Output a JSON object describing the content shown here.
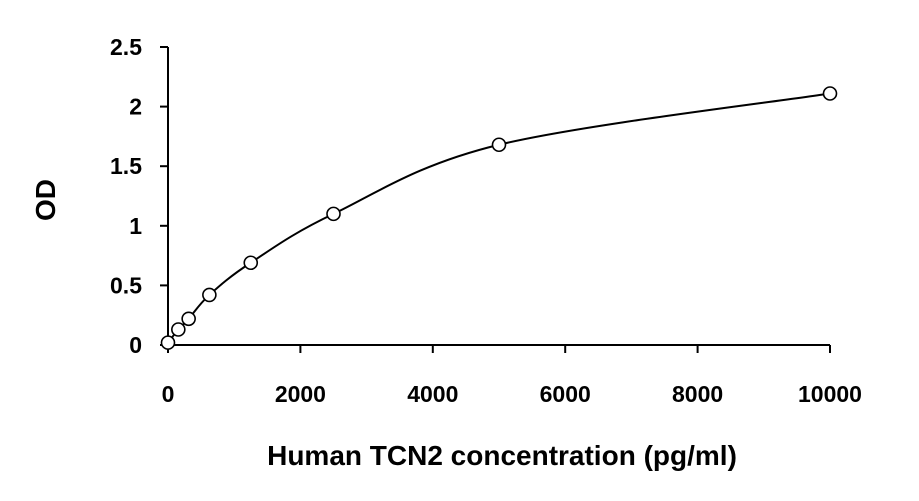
{
  "chart_data": {
    "type": "scatter",
    "title": "",
    "xlabel": "Human TCN2 concentration (pg/ml)",
    "ylabel": "OD",
    "xlim": [
      0,
      10000
    ],
    "ylim": [
      0,
      2.5
    ],
    "x_ticks": [
      0,
      2000,
      4000,
      6000,
      8000,
      10000
    ],
    "x_tick_labels": [
      "0",
      "2000",
      "4000",
      "6000",
      "8000",
      "10000"
    ],
    "y_ticks": [
      0,
      0.5,
      1,
      1.5,
      2,
      2.5
    ],
    "y_tick_labels": [
      "0",
      "0.5",
      "1",
      "1.5",
      "2",
      "2.5"
    ],
    "grid": false,
    "legend": "none",
    "series": [
      {
        "marker": "open-circle",
        "trendline": "smooth-curve",
        "points": [
          {
            "x": 0,
            "y": 0.02
          },
          {
            "x": 156,
            "y": 0.13
          },
          {
            "x": 312,
            "y": 0.22
          },
          {
            "x": 625,
            "y": 0.42
          },
          {
            "x": 1250,
            "y": 0.69
          },
          {
            "x": 2500,
            "y": 1.1
          },
          {
            "x": 5000,
            "y": 1.68
          },
          {
            "x": 10000,
            "y": 2.11
          }
        ]
      }
    ],
    "colors": {
      "axis": "#000000",
      "curve": "#000000",
      "marker_stroke": "#000000",
      "marker_fill": "#ffffff"
    }
  }
}
